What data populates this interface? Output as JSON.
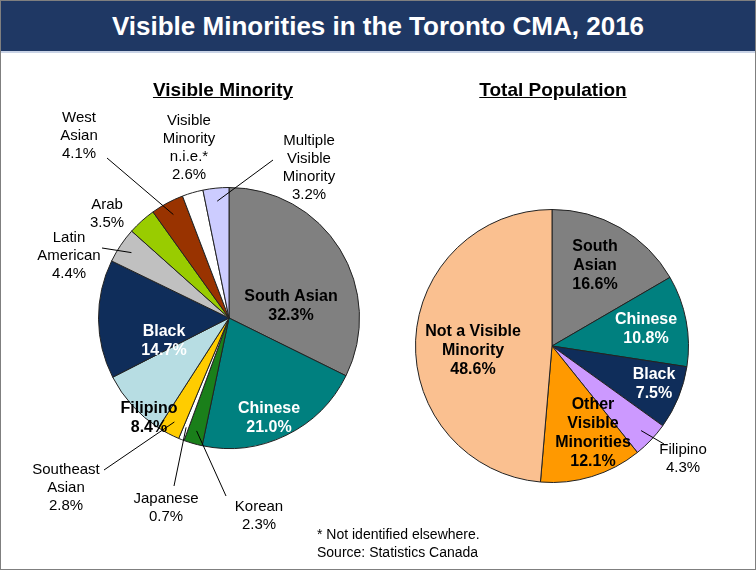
{
  "title": "Visible Minorities in the Toronto CMA, 2016",
  "notes": [
    "* Not identified elsewhere.",
    "Source: Statistics Canada"
  ],
  "chart_data": [
    {
      "type": "pie",
      "title": "Visible Minority",
      "categories": [
        "South Asian",
        "Chinese",
        "Korean",
        "Japanese",
        "Southeast Asian",
        "Filipino",
        "Black",
        "Latin American",
        "Arab",
        "West Asian",
        "Visible Minority n.i.e.*",
        "Multiple Visible Minority"
      ],
      "values": [
        32.3,
        21.0,
        2.3,
        0.7,
        2.8,
        8.4,
        14.7,
        4.4,
        3.5,
        4.1,
        2.6,
        3.2
      ],
      "value_labels": [
        "32.3%",
        "21.0%",
        "2.3%",
        "0.7%",
        "2.8%",
        "8.4%",
        "14.7%",
        "4.4%",
        "3.5%",
        "4.1%",
        "2.6%",
        "3.2%"
      ],
      "colors": [
        "#808080",
        "#00807f",
        "#1a7f1a",
        "#ffffff",
        "#ffcc00",
        "#b7dde3",
        "#0f2d5a",
        "#c0c0c0",
        "#99cc00",
        "#993300",
        "#ffffff",
        "#ccccff"
      ],
      "data_labels": true
    },
    {
      "type": "pie",
      "title": "Total Population",
      "categories": [
        "South Asian",
        "Chinese",
        "Black",
        "Filipino",
        "Other Visible Minorities",
        "Not a Visible Minority"
      ],
      "values": [
        16.6,
        10.8,
        7.5,
        4.3,
        12.1,
        48.6
      ],
      "value_labels": [
        "16.6%",
        "10.8%",
        "7.5%",
        "4.3%",
        "12.1%",
        "48.6%"
      ],
      "colors": [
        "#808080",
        "#00807f",
        "#0f2d5a",
        "#cc99ff",
        "#ff9900",
        "#fac090"
      ],
      "data_labels": true
    }
  ]
}
